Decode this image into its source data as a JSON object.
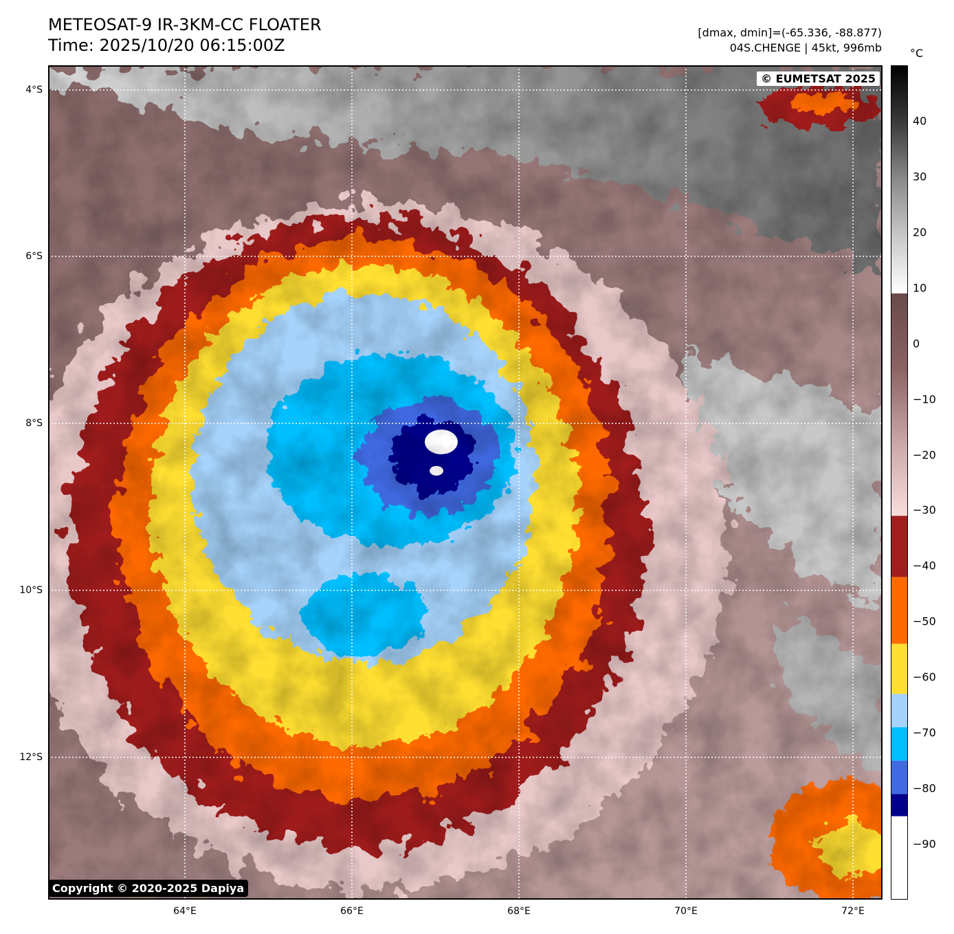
{
  "header": {
    "title": "METEOSAT-9 IR-3KM-CC FLOATER",
    "time": "Time: 2025/10/20 06:15:00Z",
    "range": "[dmax, dmin]=(-65.336, -88.877)",
    "storm": "04S.CHENGE | 45kt, 996mb"
  },
  "map": {
    "credit": "© EUMETSAT 2025",
    "copyright": "Copyright © 2020-2025 Dapiya",
    "lat_labels": [
      "4°S",
      "6°S",
      "8°S",
      "10°S",
      "12°S"
    ],
    "lon_labels": [
      "64°E",
      "66°E",
      "68°E",
      "70°E",
      "72°E"
    ]
  },
  "colorbar": {
    "unit": "°C",
    "ticks": [
      "40",
      "30",
      "20",
      "10",
      "0",
      "−10",
      "−20",
      "−30",
      "−40",
      "−50",
      "−60",
      "−70",
      "−80",
      "−90"
    ],
    "tick_values": [
      40,
      30,
      20,
      10,
      0,
      -10,
      -20,
      -30,
      -40,
      -50,
      -60,
      -70,
      -80,
      -90
    ],
    "range": [
      -100,
      50
    ],
    "bands": [
      {
        "from": -100,
        "to": -85,
        "color": "#ffffff"
      },
      {
        "from": -85,
        "to": -81,
        "color": "#00008b"
      },
      {
        "from": -81,
        "to": -75,
        "color": "#4169e1"
      },
      {
        "from": -75,
        "to": -69,
        "color": "#00bfff"
      },
      {
        "from": -69,
        "to": -63,
        "color": "#a6d3fb"
      },
      {
        "from": -63,
        "to": -54,
        "color": "#ffdf32"
      },
      {
        "from": -54,
        "to": -42,
        "color": "#ff6a00"
      },
      {
        "from": -42,
        "to": -31,
        "color": "#a01e1e"
      }
    ],
    "gradients": [
      {
        "from": -31,
        "to": 9,
        "colors": [
          "#f9dcdc",
          "#c9a6a6",
          "#8a6262",
          "#6a4a4a"
        ]
      },
      {
        "from": 9,
        "to": 50,
        "colors": [
          "#ffffff",
          "#c8c8c8",
          "#8a8a8a",
          "#3a3a3a",
          "#000000"
        ]
      }
    ]
  }
}
